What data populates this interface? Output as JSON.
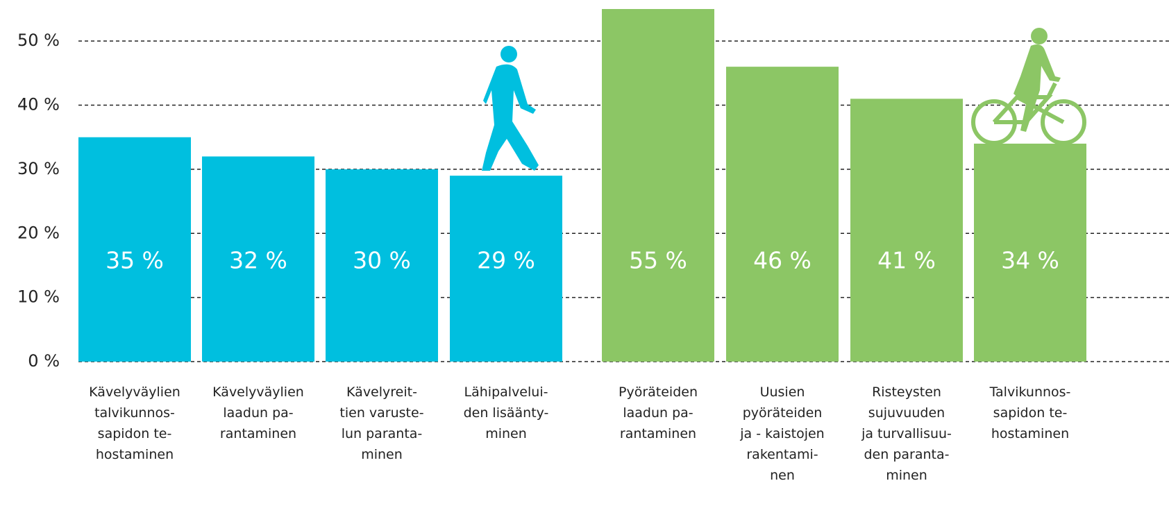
{
  "chart_data": {
    "type": "bar",
    "categories": [
      "Kävelyväylien\ntalvikunnos-\nsapidon te-\nhostaminen",
      "Kävelyväylien\nlaadun pa-\nrantaminen",
      "Kävelyreit-\ntien varuste-\nlun paranta-\nminen",
      "Lähipalvelui-\nden lisäänty-\nminen",
      "Pyöräteiden\nlaadun pa-\nrantaminen",
      "Uusien\npyöräteiden\nja - kaistojen\nrakentami-\nnen",
      "Risteysten\nsujuvuuden\nja turvallisuu-\nden paranta-\nminen",
      "Talvikunnos-\nsapidon te-\nhostaminen"
    ],
    "values": [
      35,
      32,
      30,
      29,
      55,
      46,
      41,
      34
    ],
    "value_labels": [
      "35 %",
      "32 %",
      "30 %",
      "29 %",
      "55 %",
      "46 %",
      "41 %",
      "34 %"
    ],
    "colors": [
      "#00bfdf",
      "#00bfdf",
      "#00bfdf",
      "#00bfdf",
      "#8cc665",
      "#8cc665",
      "#8cc665",
      "#8cc665"
    ],
    "ylim": [
      0,
      55
    ],
    "yticks": [
      {
        "value": 0,
        "label": "0 %"
      },
      {
        "value": 10,
        "label": "10 %"
      },
      {
        "value": 20,
        "label": "20 %"
      },
      {
        "value": 30,
        "label": "30 %"
      },
      {
        "value": 40,
        "label": "40 %"
      },
      {
        "value": 50,
        "label": "50 %"
      }
    ],
    "grid": true
  }
}
